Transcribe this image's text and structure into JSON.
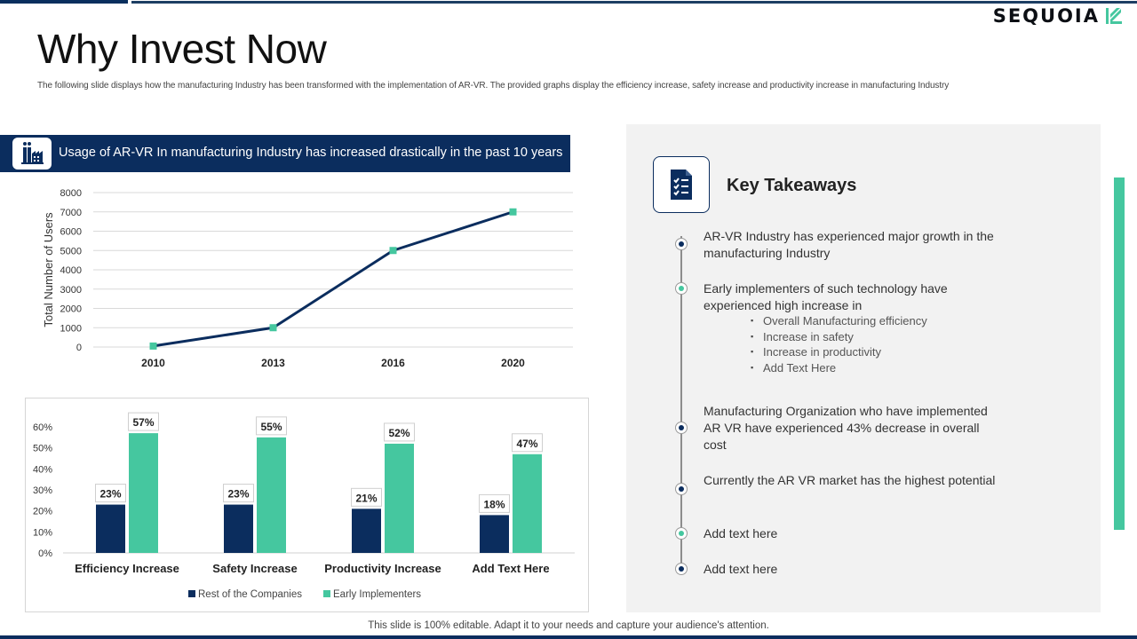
{
  "brand": {
    "name": "SEQUOIA",
    "color": "#0c0f14",
    "accent": "#45c79f"
  },
  "slide": {
    "title": "Why Invest Now",
    "subtitle": "The following slide displays how the manufacturing Industry has been transformed with the implementation of AR-VR. The provided graphs display the efficiency increase, safety increase and productivity increase in manufacturing Industry",
    "banner_text": "Usage of AR-VR In manufacturing Industry has increased drastically in the past 10 years",
    "footer": "This slide is 100% editable. Adapt it to your needs and capture your audience's attention."
  },
  "takeaways": {
    "title": "Key Takeaways",
    "items": [
      {
        "text": "AR-VR Industry has experienced major growth in the manufacturing Industry",
        "dot_color": "#0b2d5e"
      },
      {
        "text": "Early implementers of such technology have experienced high increase in",
        "dot_color": "#45c79f",
        "subitems": [
          "Overall Manufacturing efficiency",
          "Increase in safety",
          "Increase in productivity",
          "Add Text Here"
        ]
      },
      {
        "text": "Manufacturing Organization who have implemented AR VR have experienced 43% decrease in overall cost",
        "dot_color": "#0b2d5e"
      },
      {
        "text": "Currently the AR VR market has the highest potential",
        "dot_color": "#0b2d5e"
      },
      {
        "text": "Add text here",
        "dot_color": "#45c79f"
      },
      {
        "text": "Add text here",
        "dot_color": "#0b2d5e"
      }
    ]
  },
  "chart_data": [
    {
      "type": "line",
      "title": "Usage of AR-VR In manufacturing Industry has increased drastically in the past 10 years",
      "ylabel": "Total Number of Users",
      "xlabel": "",
      "x": [
        "2010",
        "2013",
        "2016",
        "2020"
      ],
      "values": [
        50,
        1000,
        5000,
        7000
      ],
      "ylim": [
        0,
        8000
      ],
      "yticks": [
        0,
        1000,
        2000,
        3000,
        4000,
        5000,
        6000,
        7000,
        8000
      ],
      "line_color": "#0b2d5e",
      "marker_color": "#45c79f",
      "grid": true
    },
    {
      "type": "bar",
      "categories": [
        "Efficiency Increase",
        "Safety Increase",
        "Productivity Increase",
        "Add Text Here"
      ],
      "series": [
        {
          "name": "Rest of the Companies",
          "values": [
            23,
            23,
            21,
            18
          ],
          "color": "#0b2d5e"
        },
        {
          "name": "Early Implementers",
          "values": [
            57,
            55,
            52,
            47
          ],
          "color": "#45c79f"
        }
      ],
      "ylim": [
        0,
        60
      ],
      "yticks": [
        "0%",
        "10%",
        "20%",
        "30%",
        "40%",
        "50%",
        "60%"
      ],
      "value_suffix": "%",
      "legend": "bottom"
    }
  ]
}
